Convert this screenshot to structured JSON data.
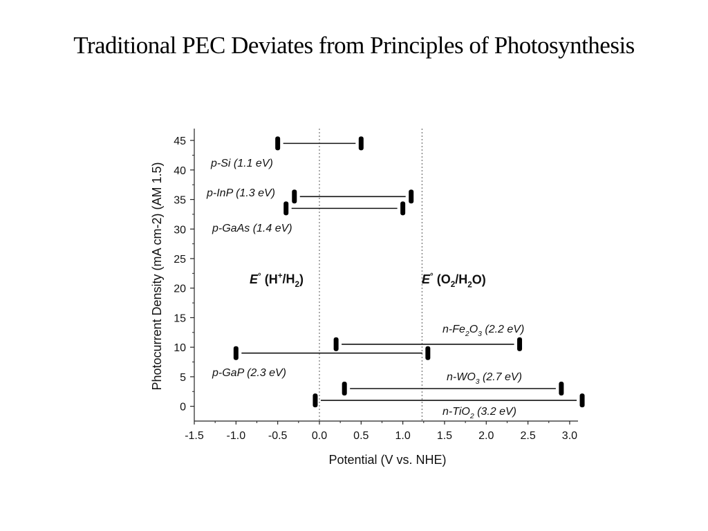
{
  "slide": {
    "title": "Traditional PEC Deviates from Principles of Photosynthesis"
  },
  "chart_data": {
    "type": "range",
    "xlabel": "Potential (V vs. NHE)",
    "ylabel": "Photocurrent Density (mA cm-2) (AM 1.5)",
    "xlim": [
      -1.5,
      3.1
    ],
    "ylim": [
      -2.5,
      47
    ],
    "xticks": [
      "-1.5",
      "-1.0",
      "-0.5",
      "0.0",
      "0.5",
      "1.0",
      "1.5",
      "2.0",
      "2.5",
      "3.0"
    ],
    "yticks": [
      "0",
      "5",
      "10",
      "15",
      "20",
      "25",
      "30",
      "35",
      "40",
      "45"
    ],
    "reference_lines": [
      {
        "label": "E° (H+/H2)",
        "x": 0.0
      },
      {
        "label": "E° (O2/H2O)",
        "x": 1.23
      }
    ],
    "series": [
      {
        "name": "p-Si (1.1 eV)",
        "x_start": -0.5,
        "x_end": 0.5,
        "y": 44.5
      },
      {
        "name": "p-InP (1.3 eV)",
        "x_start": -0.3,
        "x_end": 1.1,
        "y": 35.5
      },
      {
        "name": "p-GaAs (1.4 eV)",
        "x_start": -0.4,
        "x_end": 1.0,
        "y": 33.5
      },
      {
        "name": "n-Fe2O3 (2.2 eV)",
        "x_start": 0.2,
        "x_end": 2.4,
        "y": 10.5
      },
      {
        "name": "p-GaP (2.3 eV)",
        "x_start": -1.0,
        "x_end": 1.3,
        "y": 9.0
      },
      {
        "name": "n-WO3 (2.7 eV)",
        "x_start": 0.3,
        "x_end": 2.9,
        "y": 3.0
      },
      {
        "name": "n-TiO2 (3.2 eV)",
        "x_start": -0.05,
        "x_end": 3.15,
        "y": 1.0
      }
    ]
  }
}
